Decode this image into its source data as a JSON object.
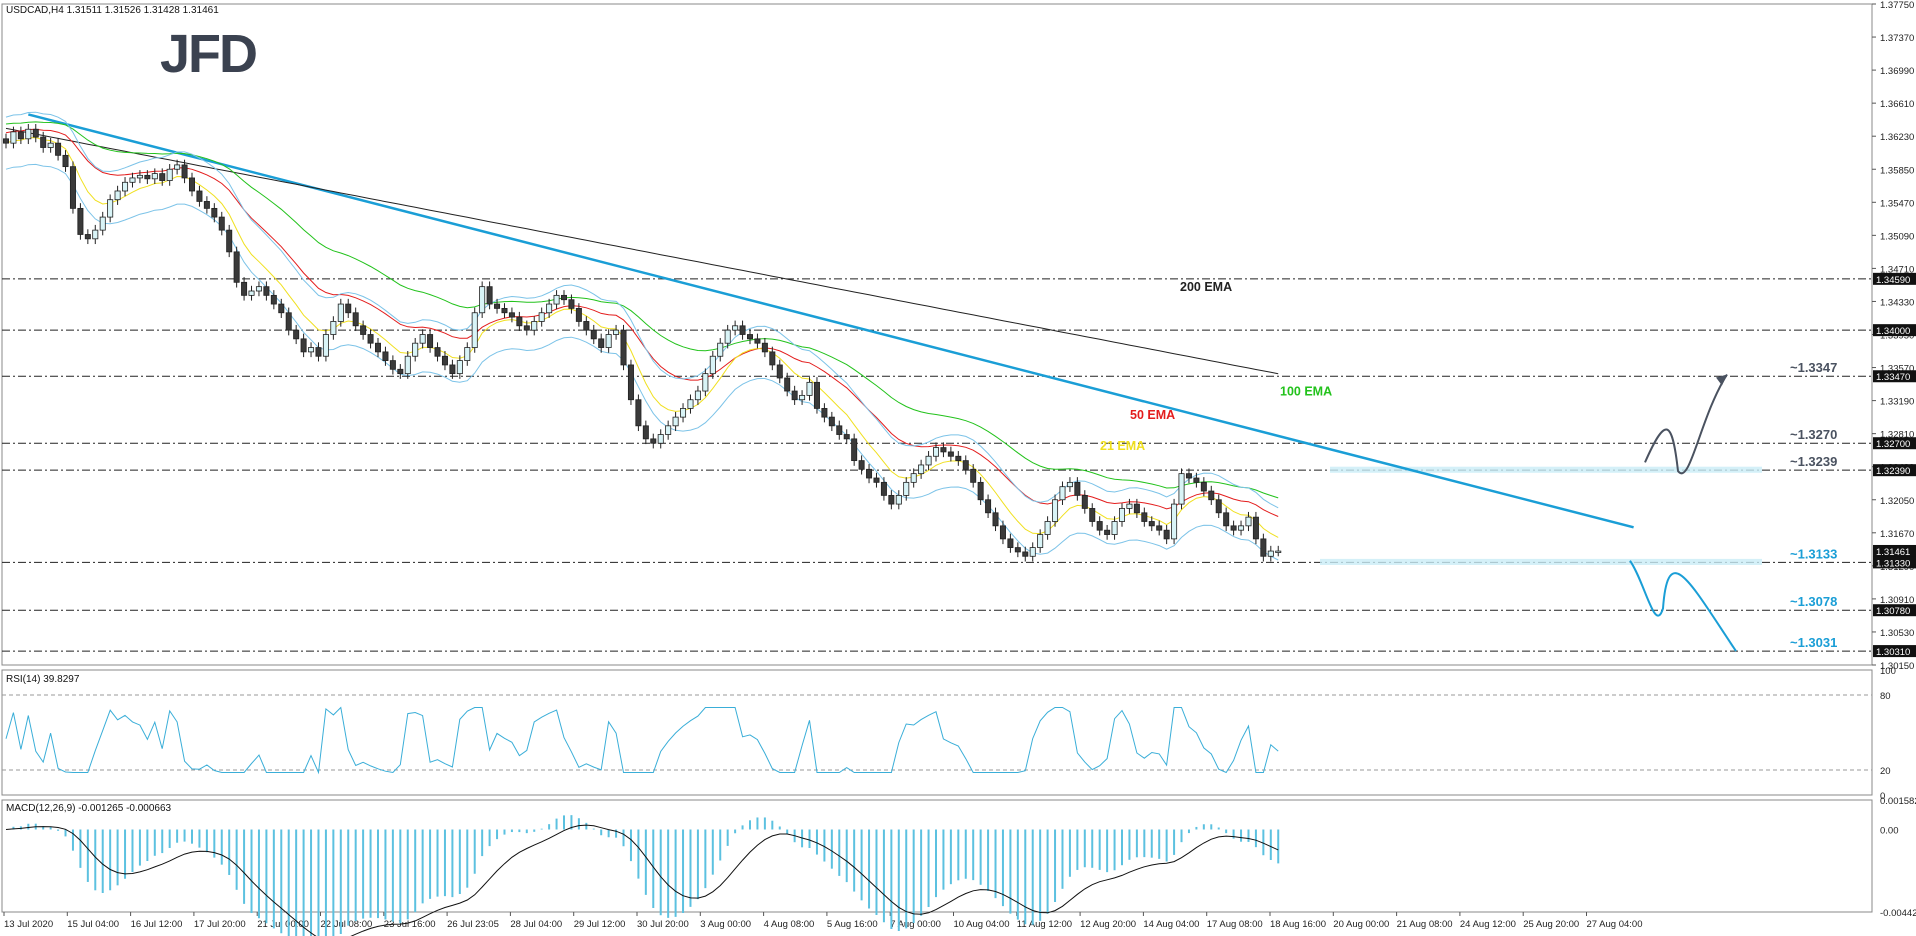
{
  "header": {
    "symbol_info": "USDCAD,H4  1.31511 1.31526 1.31428 1.31461",
    "rsi_info": "RSI(14) 39.8297",
    "macd_info": "MACD(12,26,9) -0.001265 -0.000663"
  },
  "logo": {
    "text": "JFD",
    "color": "#3b4250"
  },
  "colors": {
    "ema200": "#222222",
    "ema100": "#22c21b",
    "ema50": "#e31d1d",
    "ema21": "#f0e020",
    "bollinger": "#7cc3e8",
    "trendline": "#1a9ed6",
    "cyan_label": "#1a9ed6",
    "dark_label": "#4a5260",
    "bull_candle": "#d9f4f7",
    "bear_candle": "#3a3a3a",
    "rsi_line": "#3aaed8",
    "macd_hist": "#5cc1e0",
    "macd_signal": "#111111"
  },
  "chart_data": {
    "type": "candlestick",
    "symbol": "USDCAD",
    "timeframe": "H4",
    "ylim": [
      1.3015,
      1.3775
    ],
    "y_ticks": [
      "1.37750",
      "1.37370",
      "1.36990",
      "1.36610",
      "1.36230",
      "1.35850",
      "1.35470",
      "1.35090",
      "1.34710",
      "1.34330",
      "1.33950",
      "1.33570",
      "1.33190",
      "1.32810",
      "1.32430",
      "1.32050",
      "1.31670",
      "1.31290",
      "1.30910",
      "1.30530",
      "1.30150"
    ],
    "x_ticks": [
      "13 Jul 2020",
      "15 Jul 04:00",
      "16 Jul 12:00",
      "17 Jul 20:00",
      "21 Jul 00:00",
      "22 Jul 08:00",
      "23 Jul 16:00",
      "26 Jul 23:05",
      "28 Jul 04:00",
      "29 Jul 12:00",
      "30 Jul 20:00",
      "3 Aug 00:00",
      "4 Aug 08:00",
      "5 Aug 16:00",
      "7 Aug 00:00",
      "10 Aug 04:00",
      "11 Aug 12:00",
      "12 Aug 20:00",
      "14 Aug 04:00",
      "17 Aug 08:00",
      "18 Aug 16:00",
      "20 Aug 00:00",
      "21 Aug 08:00",
      "24 Aug 12:00",
      "25 Aug 20:00",
      "27 Aug 04:00"
    ],
    "levels": [
      {
        "value": 1.3459,
        "label": "1.34590"
      },
      {
        "value": 1.34,
        "label": "1.34000"
      },
      {
        "value": 1.3347,
        "label": "1.33470",
        "annotation": "~1.3347"
      },
      {
        "value": 1.327,
        "label": "1.32700",
        "annotation": "~1.3270"
      },
      {
        "value": 1.3239,
        "label": "1.32390",
        "annotation": "~1.3239"
      },
      {
        "value": 1.3133,
        "label": "1.31330",
        "annotation": "~1.3133"
      },
      {
        "value": 1.3078,
        "label": "1.30780",
        "annotation": "~1.3078"
      },
      {
        "value": 1.3031,
        "label": "1.30310",
        "annotation": "~1.3031"
      }
    ],
    "current_price": {
      "value": 1.31461,
      "label": "1.31461"
    },
    "ema_labels": [
      {
        "name": "200 EMA",
        "value": 1.3445
      },
      {
        "name": "100 EMA",
        "value": 1.3325
      },
      {
        "name": "50 EMA",
        "value": 1.3298
      },
      {
        "name": "21 EMA",
        "value": 1.3262
      }
    ],
    "trendline": {
      "start": {
        "bar": 3,
        "value": 1.3648
      },
      "end": {
        "bar": 215,
        "value": 1.3171
      }
    },
    "close": [
      1.3615,
      1.3628,
      1.362,
      1.3631,
      1.3622,
      1.361,
      1.3615,
      1.3601,
      1.3588,
      1.354,
      1.351,
      1.3505,
      1.3515,
      1.353,
      1.355,
      1.356,
      1.357,
      1.3575,
      1.3578,
      1.3574,
      1.358,
      1.3572,
      1.3585,
      1.359,
      1.3575,
      1.356,
      1.3548,
      1.354,
      1.353,
      1.3515,
      1.349,
      1.3455,
      1.344,
      1.3445,
      1.345,
      1.344,
      1.343,
      1.342,
      1.34,
      1.339,
      1.3375,
      1.338,
      1.337,
      1.3395,
      1.341,
      1.343,
      1.342,
      1.3405,
      1.3395,
      1.3385,
      1.3375,
      1.3365,
      1.3355,
      1.335,
      1.337,
      1.3385,
      1.3395,
      1.338,
      1.337,
      1.336,
      1.335,
      1.3365,
      1.338,
      1.342,
      1.345,
      1.343,
      1.3425,
      1.342,
      1.3415,
      1.3405,
      1.34,
      1.341,
      1.342,
      1.343,
      1.344,
      1.3435,
      1.3425,
      1.341,
      1.34,
      1.339,
      1.338,
      1.3395,
      1.34,
      1.336,
      1.332,
      1.329,
      1.3275,
      1.327,
      1.328,
      1.329,
      1.33,
      1.331,
      1.332,
      1.333,
      1.335,
      1.337,
      1.3385,
      1.34,
      1.3405,
      1.3395,
      1.339,
      1.3385,
      1.3375,
      1.336,
      1.3345,
      1.333,
      1.332,
      1.3325,
      1.334,
      1.331,
      1.33,
      1.329,
      1.328,
      1.3275,
      1.325,
      1.324,
      1.323,
      1.3225,
      1.321,
      1.32,
      1.321,
      1.3225,
      1.3235,
      1.3245,
      1.3255,
      1.3265,
      1.326,
      1.3255,
      1.325,
      1.324,
      1.3225,
      1.3205,
      1.319,
      1.3175,
      1.316,
      1.315,
      1.3145,
      1.314,
      1.315,
      1.3165,
      1.318,
      1.3205,
      1.322,
      1.3225,
      1.321,
      1.3195,
      1.318,
      1.317,
      1.3165,
      1.318,
      1.3195,
      1.32,
      1.319,
      1.318,
      1.3175,
      1.317,
      1.316,
      1.32,
      1.3235,
      1.323,
      1.3225,
      1.3215,
      1.3205,
      1.319,
      1.3175,
      1.317,
      1.3175,
      1.3185,
      1.316,
      1.314,
      1.3146,
      1.3146
    ],
    "rsi": {
      "value": 39.8297,
      "levels": [
        80,
        20
      ],
      "ylim": [
        0,
        100
      ],
      "tick_labels": [
        "100",
        "80",
        "20",
        "0"
      ]
    },
    "macd": {
      "main": -0.001265,
      "signal": -0.000663,
      "tick_labels": [
        "0.001582",
        "0.00",
        "-0.004427"
      ],
      "ylim": [
        -0.004427,
        0.001582
      ]
    }
  }
}
